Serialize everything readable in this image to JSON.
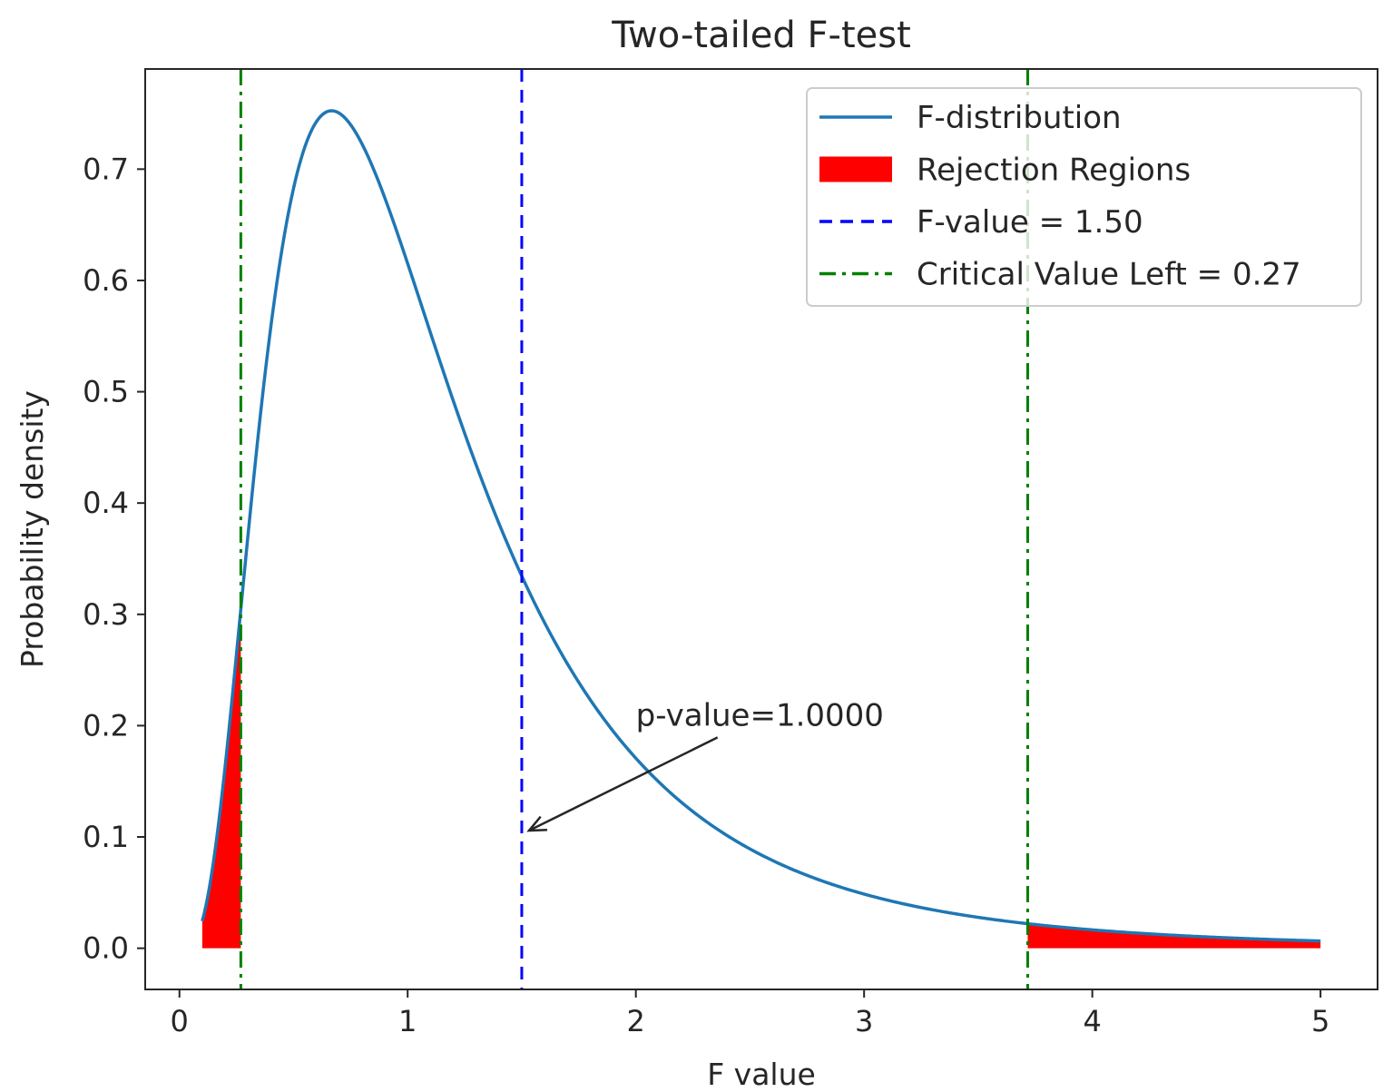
{
  "chart_data": {
    "type": "line",
    "title": "Two-tailed F-test",
    "xlabel": "F value",
    "ylabel": "Probability density",
    "xlim": [
      -0.15,
      5.25
    ],
    "ylim": [
      -0.037,
      0.79
    ],
    "xticks": [
      0,
      1,
      2,
      3,
      4,
      5
    ],
    "yticks": [
      0.0,
      0.1,
      0.2,
      0.3,
      0.4,
      0.5,
      0.6,
      0.7
    ],
    "grid": false,
    "legend_position": "top-right",
    "distribution": {
      "name": "F-distribution",
      "dfn": 10,
      "dfd": 10,
      "x_range": [
        0.1,
        5.0
      ]
    },
    "series": [
      {
        "name": "F-distribution",
        "style": "solid",
        "color": "#1f77b4"
      }
    ],
    "rejection_regions": {
      "name": "Rejection Regions",
      "color": "#ff0000",
      "intervals": [
        [
          0.1,
          0.269
        ],
        [
          3.717,
          5.0
        ]
      ]
    },
    "vlines": [
      {
        "name": "F-value = 1.50",
        "x": 1.5,
        "style": "dashed",
        "color": "#0000ff"
      },
      {
        "name": "Critical Value Left = 0.27",
        "x": 0.269,
        "style": "dashdot",
        "color": "#008000"
      },
      {
        "name": "",
        "x": 3.717,
        "style": "dashdot",
        "color": "#008000"
      }
    ],
    "annotation": {
      "text": "p-value=1.0000",
      "point": [
        1.5,
        0.1
      ],
      "text_at": [
        2.0,
        0.2
      ]
    }
  }
}
